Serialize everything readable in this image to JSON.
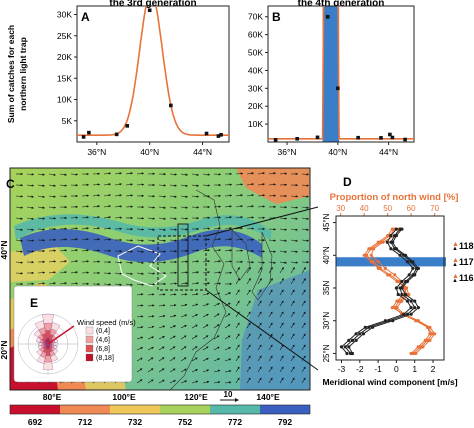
{
  "panels": {
    "A": {
      "letter": "A",
      "title": "the 3rd generation",
      "ylabel_line1": "Sum of catches for each",
      "ylabel_line2": "northern light trap",
      "yticks": [
        "5K",
        "10K",
        "15K",
        "20K",
        "25K",
        "30K"
      ],
      "xticks": [
        "36°N",
        "40°N",
        "44°N"
      ]
    },
    "B": {
      "letter": "B",
      "title": "the 4th generation",
      "yticks": [
        "10K",
        "20K",
        "30K",
        "40K",
        "50K",
        "60K",
        "70K"
      ],
      "xticks": [
        "36°N",
        "40°N",
        "44°N"
      ]
    },
    "C": {
      "letter": "C",
      "lat_labels": [
        "40°N",
        "20°N"
      ],
      "lon_labels": [
        "80°E",
        "100°E",
        "120°E",
        "140°E"
      ],
      "wind_ref": "10",
      "colorbar_ticks": [
        "692",
        "712",
        "732",
        "752",
        "772",
        "792"
      ],
      "colors": [
        "#c8102e",
        "#f08a55",
        "#f0c85a",
        "#a8d35a",
        "#55b8a8",
        "#3a5fc0"
      ]
    },
    "D": {
      "letter": "D",
      "top_title": "Proportion of north wind [%]",
      "top_ticks": [
        "30",
        "40",
        "50",
        "60",
        "70"
      ],
      "bottom_label": "Meridional wind component [m/s]",
      "bottom_ticks": [
        "-3",
        "-2",
        "-1",
        "0",
        "1",
        "2"
      ],
      "lat_ticks": [
        "45°N",
        "40°N",
        "35N",
        "30°N",
        "25°N"
      ],
      "legend": [
        "118°E",
        "117°E",
        "116°E"
      ],
      "accent_orange": "#e8733a",
      "band_color": "#3a7dc9"
    },
    "E": {
      "letter": "E",
      "legend_title": "Wind speed (m/s)",
      "legend_items": [
        "(0,4]",
        "(4,6]",
        "(6,8]",
        "(8,18]"
      ],
      "legend_colors": [
        "#fbe0e0",
        "#f2a0a0",
        "#e05050",
        "#c0102a"
      ]
    }
  },
  "chart_data": [
    {
      "panel": "A",
      "type": "scatter",
      "title": "the 3rd generation",
      "xlabel": "",
      "ylabel": "Sum of catches for each northern light trap",
      "xlim": [
        34.5,
        46
      ],
      "ylim": [
        0,
        32000
      ],
      "x": [
        35,
        35.4,
        37.5,
        38.3,
        40,
        41.6,
        44.3,
        45.2,
        45.4
      ],
      "y": [
        1200,
        2200,
        1800,
        3800,
        31000,
        8600,
        2000,
        1400,
        1700
      ],
      "fit_peak": {
        "center": 40.1,
        "amplitude": 33500,
        "sigma": 0.85,
        "baseline": 1600
      }
    },
    {
      "panel": "B",
      "type": "scatter",
      "title": "the 4th generation",
      "xlabel": "",
      "ylabel": "",
      "xlim": [
        34.5,
        46
      ],
      "ylim": [
        0,
        76000
      ],
      "x": [
        35.1,
        36.8,
        38.4,
        39.2,
        40.0,
        41.6,
        43.4,
        44.1,
        44.3,
        45.3
      ],
      "y": [
        1200,
        1800,
        2600,
        70000,
        30000,
        2400,
        2300,
        4200,
        2500,
        1400
      ],
      "highlight_band": [
        38.8,
        40.1
      ],
      "fit_baseline": 1800
    },
    {
      "panel": "D",
      "type": "line",
      "top_axis": {
        "label": "Proportion of north wind [%]",
        "lim": [
          28,
          74
        ]
      },
      "bottom_axis": {
        "label": "Meridional wind component [m/s]",
        "lim": [
          -3.3,
          2.6
        ]
      },
      "y_axis": {
        "lim": [
          24,
          46
        ]
      },
      "latitudes": [
        25,
        26,
        27,
        28,
        29,
        30,
        31,
        32,
        33,
        34,
        35,
        36,
        37,
        38,
        39,
        40,
        41,
        42,
        43,
        44
      ],
      "highlight_band": [
        38.3,
        39.7
      ],
      "series": [
        {
          "name": "118°E",
          "axis": "top",
          "color": "#e8733a",
          "values": [
            60,
            63,
            66,
            68,
            67,
            63,
            57,
            52,
            54,
            57,
            58,
            56,
            53,
            49,
            46,
            43,
            44,
            48,
            53,
            55
          ]
        },
        {
          "name": "117°E",
          "axis": "top",
          "color": "#e8733a",
          "values": [
            61,
            64,
            67,
            69,
            67,
            62,
            56,
            53,
            55,
            58,
            57,
            55,
            51,
            47,
            44,
            41,
            43,
            47,
            51,
            53
          ]
        },
        {
          "name": "116°E",
          "axis": "top",
          "color": "#e8733a",
          "values": [
            62,
            65,
            68,
            70,
            68,
            63,
            57,
            54,
            56,
            59,
            58,
            54,
            50,
            46,
            43,
            40,
            42,
            46,
            50,
            52
          ]
        },
        {
          "name": "118°E",
          "axis": "bottom",
          "color": "#222222",
          "values": [
            -2.4,
            -2.6,
            -2.2,
            -1.8,
            -1.3,
            -0.2,
            0.8,
            1.2,
            1.0,
            0.5,
            0.3,
            0.6,
            1.0,
            1.2,
            0.9,
            0.5,
            0.0,
            -0.2,
            0.0,
            0.3
          ]
        },
        {
          "name": "117°E",
          "axis": "bottom",
          "color": "#222222",
          "values": [
            -2.5,
            -2.8,
            -2.4,
            -2.0,
            -1.5,
            -0.4,
            0.6,
            1.0,
            0.8,
            0.3,
            0.2,
            0.5,
            0.9,
            1.1,
            0.8,
            0.4,
            -0.1,
            -0.3,
            -0.1,
            0.2
          ]
        },
        {
          "name": "116°E",
          "axis": "bottom",
          "color": "#222222",
          "values": [
            -2.7,
            -3.0,
            -2.6,
            -2.2,
            -1.7,
            -0.6,
            0.4,
            0.8,
            0.6,
            0.1,
            0.0,
            0.3,
            0.7,
            0.9,
            0.6,
            0.2,
            -0.3,
            -0.5,
            -0.3,
            0.0
          ]
        }
      ]
    }
  ]
}
